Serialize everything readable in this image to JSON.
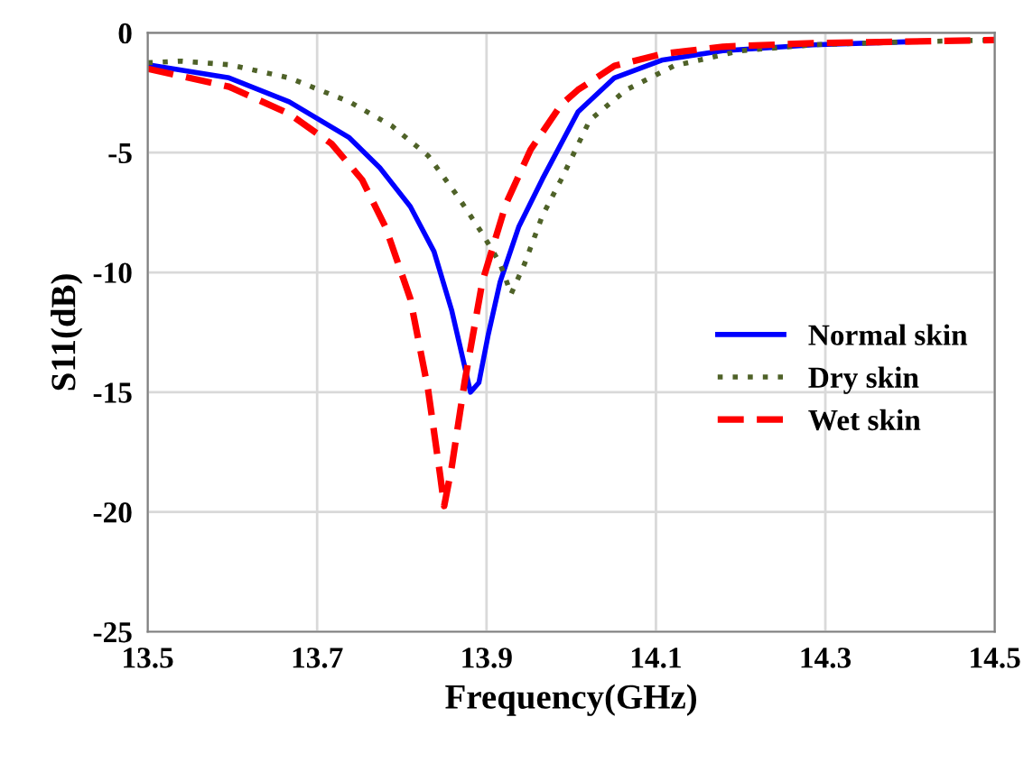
{
  "chart_data": {
    "type": "line",
    "xlabel": "Frequency(GHz)",
    "ylabel": "S11(dB)",
    "xlim": [
      13.5,
      14.5
    ],
    "xticks": [
      13.5,
      13.7,
      13.9,
      14.1,
      14.3,
      14.5
    ],
    "ylim": [
      -25,
      0
    ],
    "yticks": [
      -25,
      -20,
      -15,
      -10,
      -5,
      0
    ],
    "grid": true,
    "legend": "right",
    "series": [
      {
        "name": "Normal skin",
        "color": "#0000ff",
        "line_style": "solid",
        "x": [
          13.5,
          13.596,
          13.667,
          13.738,
          13.774,
          13.81,
          13.838,
          13.859,
          13.874,
          13.881,
          13.891,
          13.902,
          13.916,
          13.938,
          13.966,
          14.008,
          14.051,
          14.108,
          14.179,
          14.285,
          14.392
        ],
        "values": [
          -1.33,
          -1.88,
          -2.88,
          -4.38,
          -5.63,
          -7.25,
          -9.13,
          -11.6,
          -13.9,
          -15.0,
          -14.6,
          -12.6,
          -10.4,
          -8.1,
          -6.1,
          -3.3,
          -1.88,
          -1.13,
          -0.75,
          -0.5,
          -0.38
        ]
      },
      {
        "name": "Dry skin",
        "color": "#4f6228",
        "line_style": "dotted",
        "x": [
          13.5,
          13.539,
          13.596,
          13.667,
          13.738,
          13.788,
          13.831,
          13.867,
          13.895,
          13.916,
          13.929,
          13.945,
          13.966,
          13.988,
          14.022,
          14.065,
          14.121,
          14.2,
          14.285,
          14.392,
          14.5
        ],
        "values": [
          -1.25,
          -1.18,
          -1.33,
          -1.88,
          -2.88,
          -3.88,
          -5.13,
          -6.88,
          -8.38,
          -9.63,
          -10.9,
          -9.63,
          -7.63,
          -6.13,
          -3.64,
          -2.38,
          -1.38,
          -0.75,
          -0.5,
          -0.38,
          -0.3
        ]
      },
      {
        "name": "Wet skin",
        "color": "#ff0000",
        "line_style": "dashed",
        "x": [
          13.5,
          13.596,
          13.667,
          13.717,
          13.753,
          13.781,
          13.81,
          13.831,
          13.845,
          13.85,
          13.859,
          13.874,
          13.895,
          13.923,
          13.952,
          13.988,
          14.008,
          14.051,
          14.108,
          14.179,
          14.285,
          14.5
        ],
        "values": [
          -1.5,
          -2.25,
          -3.38,
          -4.63,
          -6.13,
          -8.13,
          -11.1,
          -14.9,
          -18.4,
          -19.75,
          -18.1,
          -14.6,
          -10.4,
          -7.13,
          -4.88,
          -3.0,
          -2.38,
          -1.38,
          -0.88,
          -0.58,
          -0.43,
          -0.3
        ]
      }
    ]
  }
}
